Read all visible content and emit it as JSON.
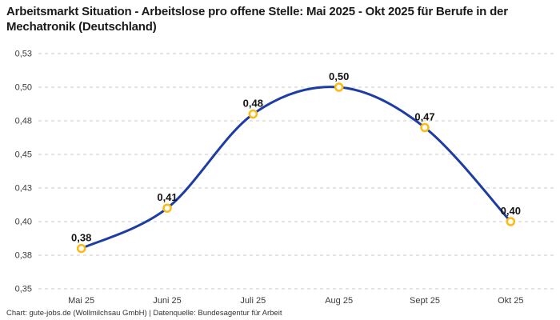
{
  "title": "Arbeitsmarkt Situation - Arbeitslose pro offene Stelle: Mai 2025 - Okt 2025 für Berufe in der Mechatronik (Deutschland)",
  "footer": "Chart: gute-jobs.de (Wollmilchsau GmbH) | Datenquelle: Bundesagentur für Arbeit",
  "colors": {
    "line": "#1e3da4",
    "marker": "#fcba12",
    "marker_fill": "#ffffff",
    "grid": "#cbcbcb",
    "title_text": "#1a1a1a",
    "axis_text": "#3c3c3c",
    "point_label_text": "#141414",
    "background": "#ffffff"
  },
  "chart_data": {
    "type": "line",
    "smooth": true,
    "title": "Arbeitsmarkt Situation - Arbeitslose pro offene Stelle: Mai 2025 - Okt 2025 für Berufe in der Mechatronik (Deutschland)",
    "source": "Chart: gute-jobs.de (Wollmilchsau GmbH) | Datenquelle: Bundesagentur für Arbeit",
    "categories": [
      "Mai 25",
      "Juni 25",
      "Juli 25",
      "Aug 25",
      "Sept 25",
      "Okt 25"
    ],
    "values": [
      0.38,
      0.41,
      0.48,
      0.5,
      0.47,
      0.4
    ],
    "point_labels": [
      "0,38",
      "0,41",
      "0,48",
      "0,50",
      "0,47",
      "0,40"
    ],
    "xlabel": "",
    "ylabel": "",
    "ylim": [
      0.35,
      0.525
    ],
    "y_ticks": {
      "values": [
        0.525,
        0.5,
        0.475,
        0.45,
        0.425,
        0.4,
        0.375,
        0.35
      ],
      "labels": [
        "0,53",
        "0,50",
        "0,48",
        "0,45",
        "0,43",
        "0,40",
        "0,38",
        "0,35"
      ]
    },
    "grid": "horizontal-dashed",
    "legend": "none",
    "marker_style": "open-circle"
  }
}
